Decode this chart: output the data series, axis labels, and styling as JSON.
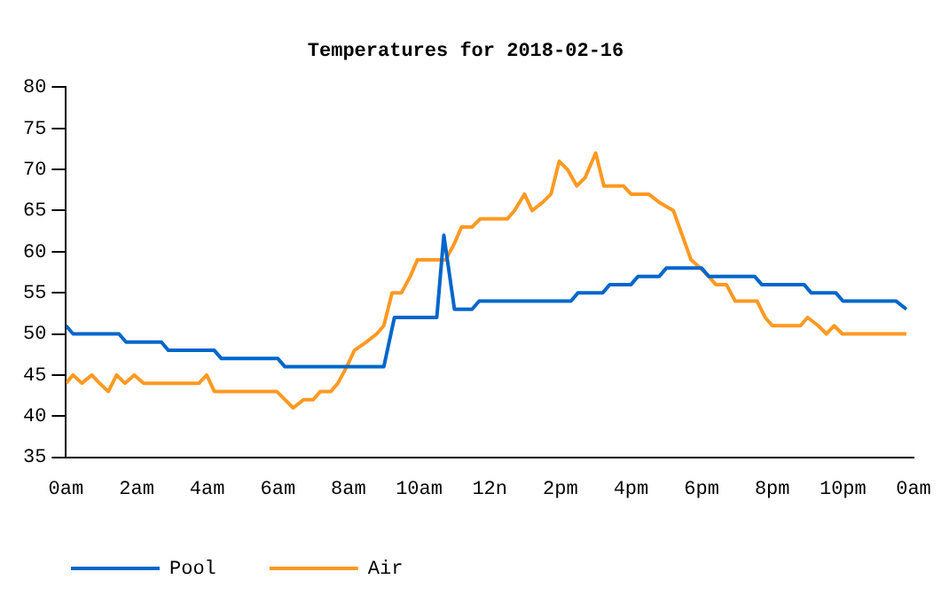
{
  "chart_data": {
    "type": "line",
    "title": "Temperatures for 2018-02-16",
    "xlim": [
      "2018-02-16T00:00",
      "2018-02-17T00:00"
    ],
    "xticks": [
      {
        "value": "2018-02-16T00:00",
        "label": "0am"
      },
      {
        "value": "2018-02-16T02:00",
        "label": "2am"
      },
      {
        "value": "2018-02-16T04:00",
        "label": "4am"
      },
      {
        "value": "2018-02-16T06:00",
        "label": "6am"
      },
      {
        "value": "2018-02-16T08:00",
        "label": "8am"
      },
      {
        "value": "2018-02-16T10:00",
        "label": "10am"
      },
      {
        "value": "2018-02-16T12:00",
        "label": "12n"
      },
      {
        "value": "2018-02-16T14:00",
        "label": "2pm"
      },
      {
        "value": "2018-02-16T16:00",
        "label": "4pm"
      },
      {
        "value": "2018-02-16T18:00",
        "label": "6pm"
      },
      {
        "value": "2018-02-16T20:00",
        "label": "8pm"
      },
      {
        "value": "2018-02-16T22:00",
        "label": "10pm"
      },
      {
        "value": "2018-02-17T00:00",
        "label": "0am"
      }
    ],
    "ylim": [
      35,
      80
    ],
    "yticks": [
      35,
      40,
      45,
      50,
      55,
      60,
      65,
      70,
      75,
      80
    ],
    "grid": false,
    "legend": "bottom left",
    "marker": "none",
    "line_style": "solid",
    "series": [
      {
        "name": "Pool",
        "color": "#0066cc",
        "x": [
          "2018-02-16T00:00",
          "2018-02-16T00:12",
          "2018-02-16T01:30",
          "2018-02-16T01:42",
          "2018-02-16T02:42",
          "2018-02-16T02:54",
          "2018-02-16T04:12",
          "2018-02-16T04:24",
          "2018-02-16T06:00",
          "2018-02-16T06:12",
          "2018-02-16T09:00",
          "2018-02-16T09:18",
          "2018-02-16T10:30",
          "2018-02-16T10:42",
          "2018-02-16T11:00",
          "2018-02-16T11:30",
          "2018-02-16T11:42",
          "2018-02-16T14:18",
          "2018-02-16T14:30",
          "2018-02-16T15:12",
          "2018-02-16T15:24",
          "2018-02-16T16:00",
          "2018-02-16T16:12",
          "2018-02-16T16:48",
          "2018-02-16T17:00",
          "2018-02-16T18:00",
          "2018-02-16T18:12",
          "2018-02-16T19:30",
          "2018-02-16T19:42",
          "2018-02-16T20:54",
          "2018-02-16T21:06",
          "2018-02-16T21:48",
          "2018-02-16T22:00",
          "2018-02-16T23:30",
          "2018-02-16T23:48"
        ],
        "values": [
          51,
          50,
          50,
          49,
          49,
          48,
          48,
          47,
          47,
          46,
          46,
          52,
          52,
          62,
          53,
          53,
          54,
          54,
          55,
          55,
          56,
          56,
          57,
          57,
          58,
          58,
          57,
          57,
          56,
          56,
          55,
          55,
          54,
          54,
          53
        ]
      },
      {
        "name": "Air",
        "color": "#ff9922",
        "x": [
          "2018-02-16T00:00",
          "2018-02-16T00:12",
          "2018-02-16T00:27",
          "2018-02-16T00:44",
          "2018-02-16T00:57",
          "2018-02-16T01:12",
          "2018-02-16T01:26",
          "2018-02-16T01:40",
          "2018-02-16T01:56",
          "2018-02-16T02:12",
          "2018-02-16T03:46",
          "2018-02-16T03:59",
          "2018-02-16T04:12",
          "2018-02-16T05:58",
          "2018-02-16T06:12",
          "2018-02-16T06:26",
          "2018-02-16T06:44",
          "2018-02-16T07:00",
          "2018-02-16T07:12",
          "2018-02-16T07:30",
          "2018-02-16T07:42",
          "2018-02-16T07:57",
          "2018-02-16T08:10",
          "2018-02-16T08:30",
          "2018-02-16T08:48",
          "2018-02-16T09:00",
          "2018-02-16T09:14",
          "2018-02-16T09:30",
          "2018-02-16T09:45",
          "2018-02-16T09:57",
          "2018-02-16T10:45",
          "2018-02-16T11:00",
          "2018-02-16T11:12",
          "2018-02-16T11:30",
          "2018-02-16T11:44",
          "2018-02-16T12:30",
          "2018-02-16T12:42",
          "2018-02-16T12:59",
          "2018-02-16T13:12",
          "2018-02-16T13:30",
          "2018-02-16T13:44",
          "2018-02-16T13:58",
          "2018-02-16T14:12",
          "2018-02-16T14:28",
          "2018-02-16T14:42",
          "2018-02-16T15:00",
          "2018-02-16T15:14",
          "2018-02-16T15:47",
          "2018-02-16T16:00",
          "2018-02-16T16:30",
          "2018-02-16T16:48",
          "2018-02-16T17:12",
          "2018-02-16T17:27",
          "2018-02-16T17:42",
          "2018-02-16T17:58",
          "2018-02-16T18:12",
          "2018-02-16T18:24",
          "2018-02-16T18:42",
          "2018-02-16T18:57",
          "2018-02-16T19:34",
          "2018-02-16T19:48",
          "2018-02-16T20:00",
          "2018-02-16T20:48",
          "2018-02-16T21:00",
          "2018-02-16T21:18",
          "2018-02-16T21:32",
          "2018-02-16T21:45",
          "2018-02-16T21:59",
          "2018-02-16T23:48"
        ],
        "values": [
          44,
          45,
          44,
          45,
          44,
          43,
          45,
          44,
          45,
          44,
          44,
          45,
          43,
          43,
          42,
          41,
          42,
          42,
          43,
          43,
          44,
          46,
          48,
          49,
          50,
          51,
          55,
          55,
          57,
          59,
          59,
          61,
          63,
          63,
          64,
          64,
          65,
          67,
          65,
          66,
          67,
          71,
          70,
          68,
          69,
          72,
          68,
          68,
          67,
          67,
          66,
          65,
          62,
          59,
          58,
          57,
          56,
          56,
          54,
          54,
          52,
          51,
          51,
          52,
          51,
          50,
          51,
          50,
          50
        ]
      }
    ]
  }
}
